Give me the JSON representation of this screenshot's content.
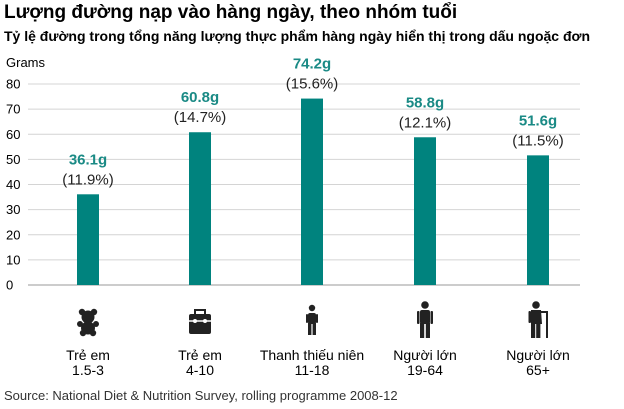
{
  "title": "Lượng đường nạp vào hàng ngày, theo nhóm tuổi",
  "subtitle": "Tỷ lệ đường trong tổng năng lượng thực phẩm hàng ngày hiển thị trong dấu ngoặc đơn",
  "source": "Source: National Diet & Nutrition Survey, rolling programme 2008-12",
  "colors": {
    "bar": "#00837e",
    "value_label": "#1a8a85",
    "grid": "#d4d4d4",
    "icon": "#222222"
  },
  "chart_data": {
    "type": "bar",
    "ylabel": "Grams",
    "ylim": [
      0,
      80
    ],
    "yticks": [
      0,
      10,
      20,
      30,
      40,
      50,
      60,
      70,
      80
    ],
    "grid": true,
    "categories": [
      {
        "name": "Trẻ em",
        "sub": "1.5-3",
        "icon": "teddy-bear-icon"
      },
      {
        "name": "Trẻ em",
        "sub": "4-10",
        "icon": "lunchbox-icon"
      },
      {
        "name": "Thanh thiếu niên",
        "sub": "11-18",
        "icon": "teenager-icon"
      },
      {
        "name": "Người lớn",
        "sub": "19-64",
        "icon": "adult-icon"
      },
      {
        "name": "Người lớn",
        "sub": "65+",
        "icon": "elderly-cane-icon"
      }
    ],
    "values": [
      36.1,
      60.8,
      74.2,
      58.8,
      51.6
    ],
    "value_labels": [
      "36.1g",
      "60.8g",
      "74.2g",
      "58.8g",
      "51.6g"
    ],
    "percent_labels": [
      "(11.9%)",
      "(14.7%)",
      "(15.6%)",
      "(12.1%)",
      "(11.5%)"
    ]
  }
}
